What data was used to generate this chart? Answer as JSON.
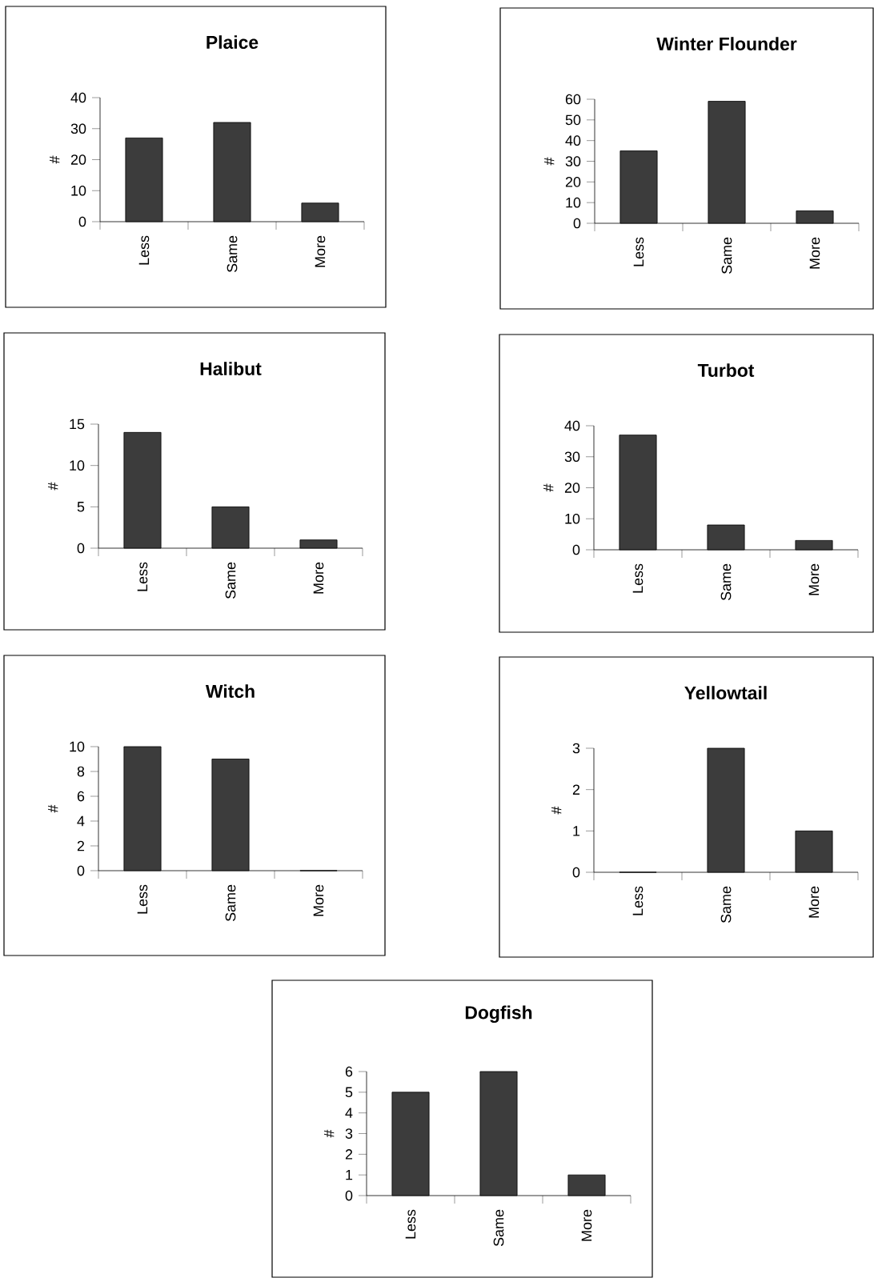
{
  "chart_data": [
    {
      "type": "bar",
      "title": "Plaice",
      "ylabel": "#",
      "categories": [
        "Less",
        "Same",
        "More"
      ],
      "values": [
        27,
        32,
        6
      ],
      "color": "#3c3c3c",
      "ylim": [
        0,
        40
      ],
      "yticks": [
        0,
        10,
        20,
        30,
        40
      ]
    },
    {
      "type": "bar",
      "title": "Winter Flounder",
      "ylabel": "#",
      "categories": [
        "Less",
        "Same",
        "More"
      ],
      "values": [
        35,
        59,
        6
      ],
      "color": "#3c3c3c",
      "ylim": [
        0,
        60
      ],
      "yticks": [
        0,
        10,
        20,
        30,
        40,
        50,
        60
      ]
    },
    {
      "type": "bar",
      "title": "Halibut",
      "ylabel": "#",
      "categories": [
        "Less",
        "Same",
        "More"
      ],
      "values": [
        14,
        5,
        1
      ],
      "color": "#3c3c3c",
      "ylim": [
        0,
        15
      ],
      "yticks": [
        0,
        5,
        10,
        15
      ]
    },
    {
      "type": "bar",
      "title": "Turbot",
      "ylabel": "#",
      "categories": [
        "Less",
        "Same",
        "More"
      ],
      "values": [
        37,
        8,
        3
      ],
      "color": "#3c3c3c",
      "ylim": [
        0,
        40
      ],
      "yticks": [
        0,
        10,
        20,
        30,
        40
      ]
    },
    {
      "type": "bar",
      "title": "Witch",
      "ylabel": "#",
      "categories": [
        "Less",
        "Same",
        "More"
      ],
      "values": [
        10,
        9,
        0
      ],
      "color": "#3c3c3c",
      "ylim": [
        0,
        10
      ],
      "yticks": [
        0,
        2,
        4,
        6,
        8,
        10
      ]
    },
    {
      "type": "bar",
      "title": "Yellowtail",
      "ylabel": "#",
      "categories": [
        "Less",
        "Same",
        "More"
      ],
      "values": [
        0,
        3,
        1
      ],
      "color": "#3c3c3c",
      "ylim": [
        0,
        3
      ],
      "yticks": [
        0,
        1,
        2,
        3
      ]
    },
    {
      "type": "bar",
      "title": "Dogfish",
      "ylabel": "#",
      "categories": [
        "Less",
        "Same",
        "More"
      ],
      "values": [
        5,
        6,
        1
      ],
      "color": "#3c3c3c",
      "ylim": [
        0,
        6
      ],
      "yticks": [
        0,
        1,
        2,
        3,
        4,
        5,
        6
      ]
    }
  ]
}
